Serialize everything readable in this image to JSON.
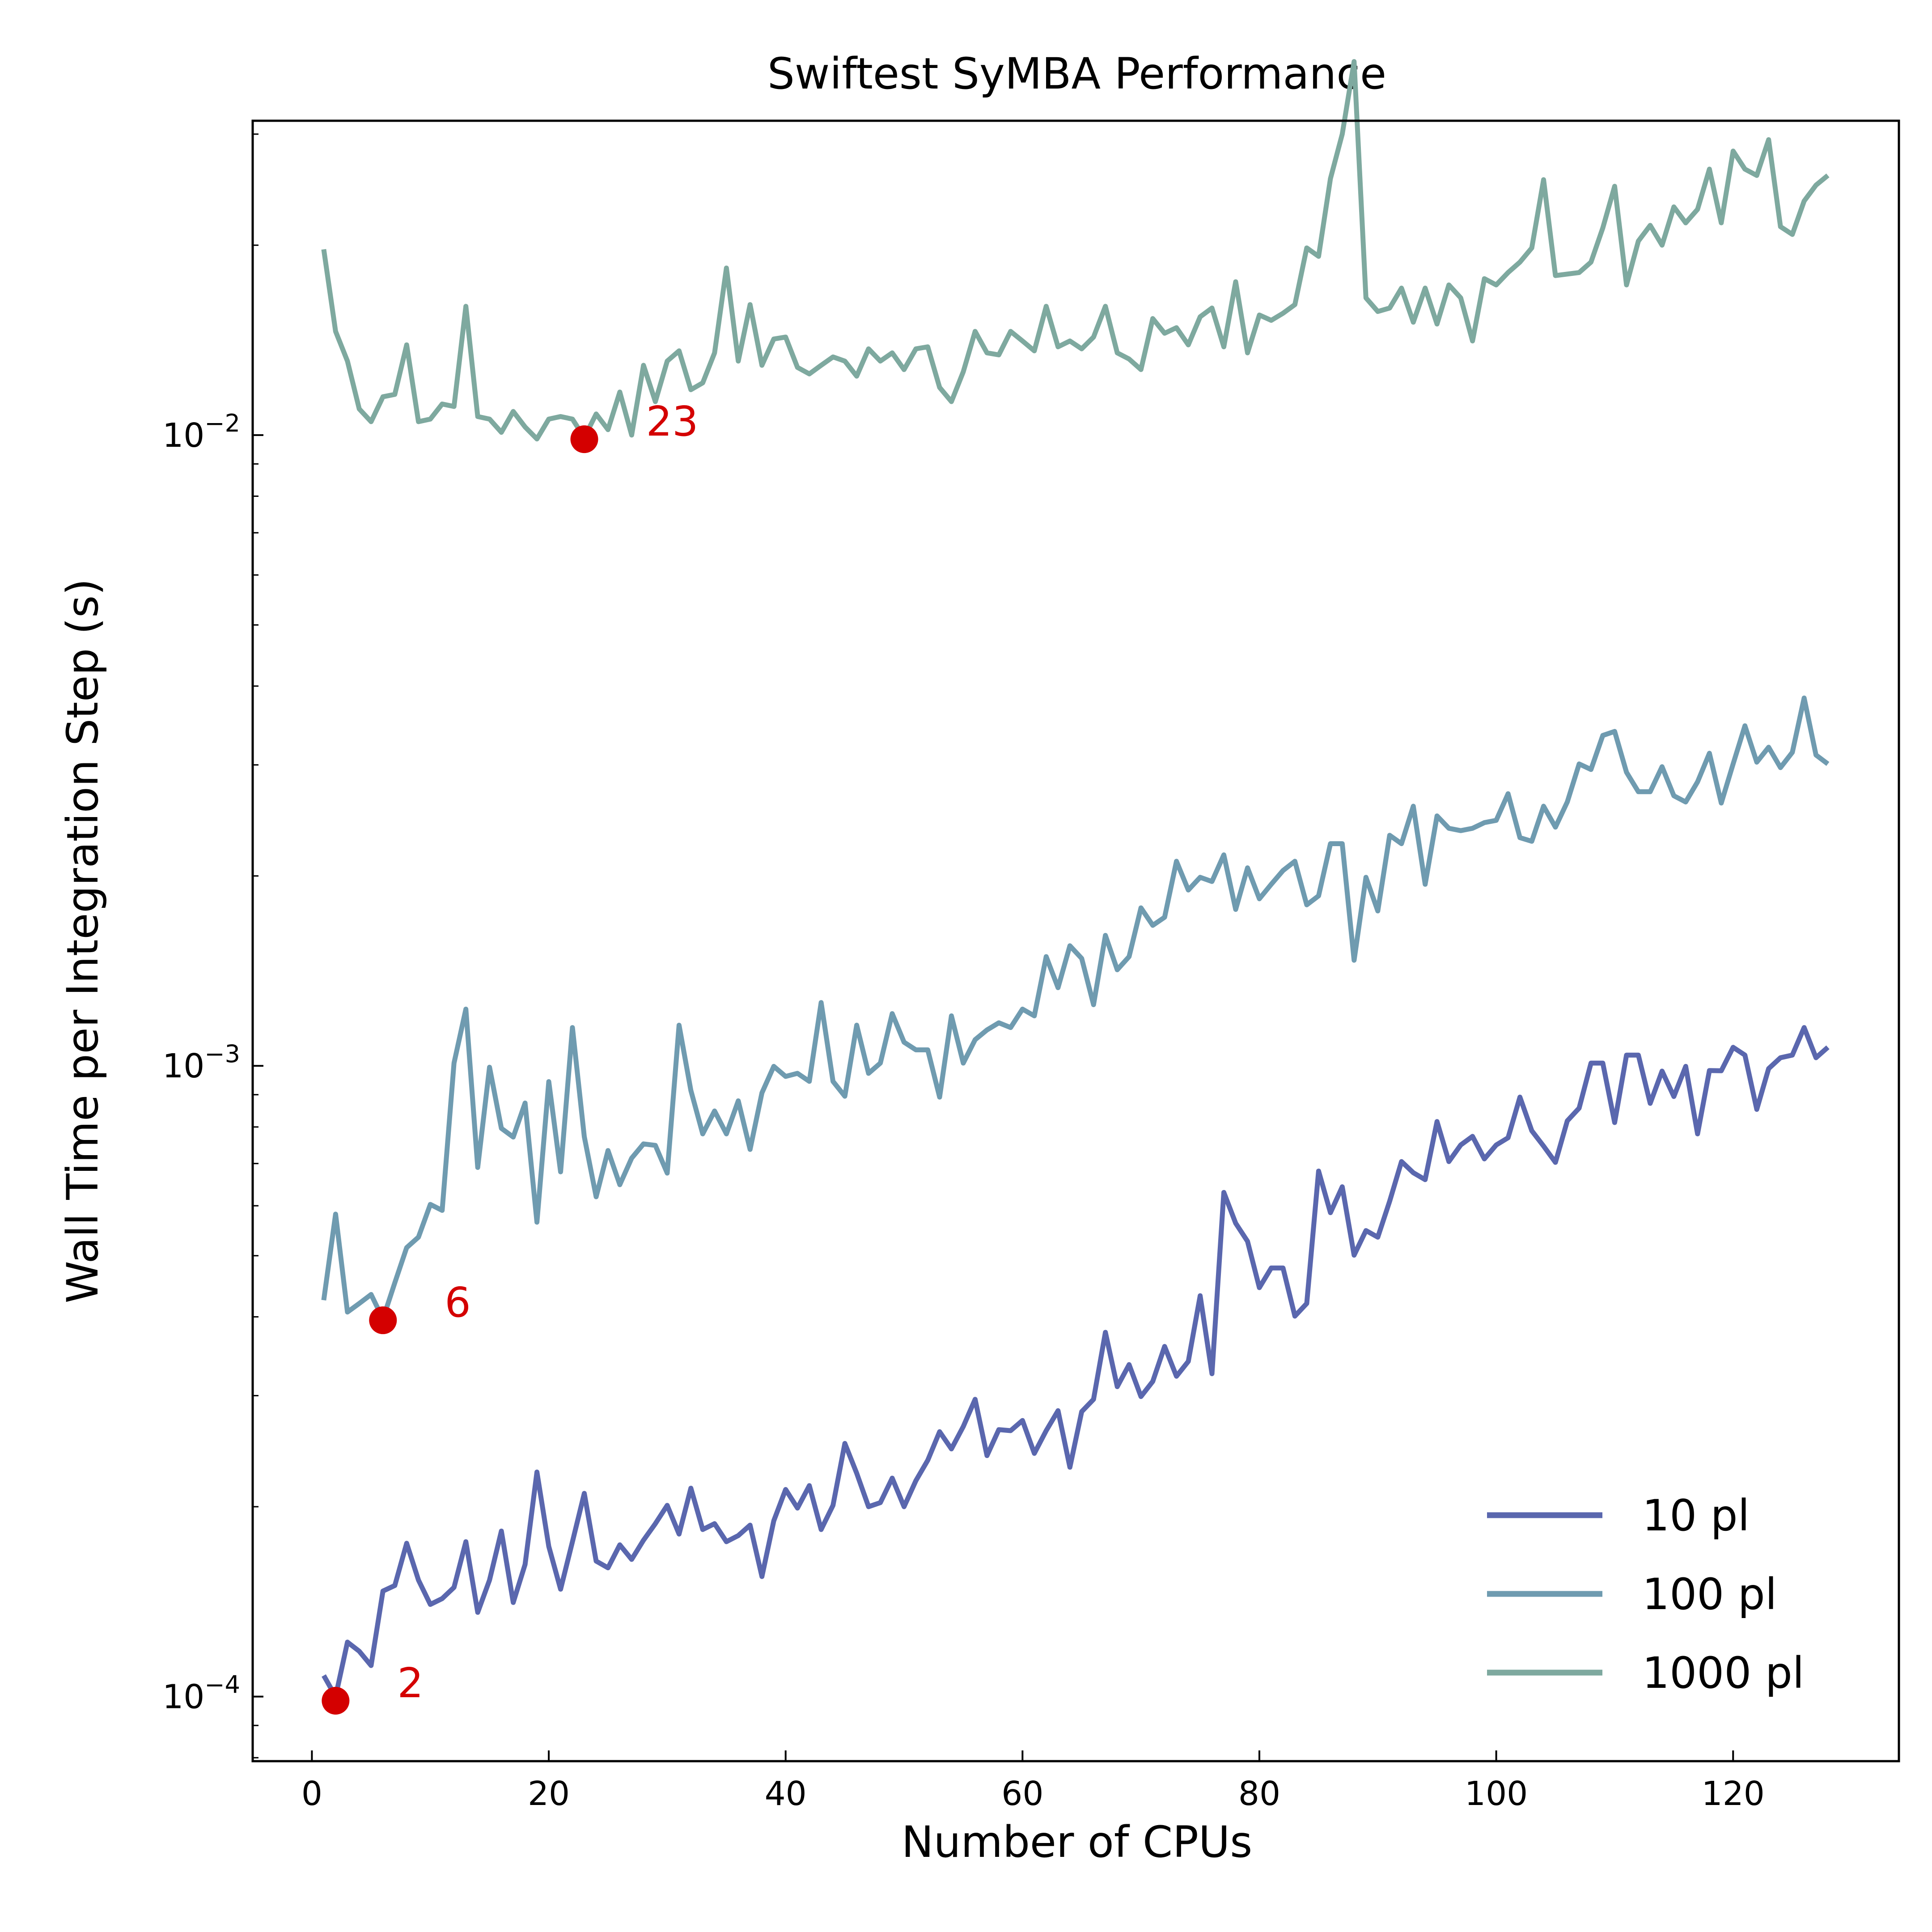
{
  "chart_data": {
    "type": "line",
    "title": "Swiftest SyMBA Performance",
    "xlabel": "Number of CPUs",
    "ylabel": "Wall Time per Integration Step (s)",
    "xlim": [
      -5,
      134
    ],
    "ylim": [
      7.9e-05,
      0.0315
    ],
    "yscale": "log",
    "grid": false,
    "legend_position": "lower-right",
    "x_ticks": [
      0,
      20,
      40,
      60,
      80,
      100,
      120
    ],
    "y_ticks": [
      0.0001,
      0.001,
      0.01
    ],
    "y_tick_labels": [
      {
        "base": "10",
        "exp": "−4"
      },
      {
        "base": "10",
        "exp": "−3"
      },
      {
        "base": "10",
        "exp": "−2"
      }
    ],
    "x": [
      1,
      2,
      3,
      4,
      5,
      6,
      7,
      8,
      9,
      10,
      11,
      12,
      13,
      14,
      15,
      16,
      17,
      18,
      19,
      20,
      21,
      22,
      23,
      24,
      25,
      26,
      27,
      28,
      29,
      30,
      31,
      32,
      33,
      34,
      35,
      36,
      37,
      38,
      39,
      40,
      41,
      42,
      43,
      44,
      45,
      46,
      47,
      48,
      49,
      50,
      51,
      52,
      53,
      54,
      55,
      56,
      57,
      58,
      59,
      60,
      61,
      62,
      63,
      64,
      65,
      66,
      67,
      68,
      69,
      70,
      71,
      72,
      73,
      74,
      75,
      76,
      77,
      78,
      79,
      80,
      81,
      82,
      83,
      84,
      85,
      86,
      87,
      88,
      89,
      90,
      91,
      92,
      93,
      94,
      95,
      96,
      97,
      98,
      99,
      100,
      101,
      102,
      103,
      104,
      105,
      106,
      107,
      108,
      109,
      110,
      111,
      112,
      113,
      114,
      115,
      116,
      117,
      118,
      119,
      120,
      121,
      122,
      123,
      124,
      125,
      126,
      127,
      128
    ],
    "series": [
      {
        "name": "10 pl",
        "color": "#5a67ae",
        "values": [
          0.000108,
          0.0001,
          0.000122,
          0.000118,
          0.000112,
          0.000147,
          0.00015,
          0.000175,
          0.000153,
          0.00014,
          0.000143,
          0.000149,
          0.000176,
          0.000136,
          0.000153,
          0.000183,
          0.000141,
          0.000162,
          0.000227,
          0.000173,
          0.000148,
          0.000176,
          0.00021,
          0.000164,
          0.00016,
          0.000174,
          0.000165,
          0.000177,
          0.000188,
          0.000201,
          0.000181,
          0.000214,
          0.000184,
          0.000188,
          0.000176,
          0.00018,
          0.000187,
          0.000155,
          0.00019,
          0.000213,
          0.000199,
          0.000216,
          0.000184,
          0.000201,
          0.000252,
          0.000226,
          0.0002,
          0.000203,
          0.000222,
          0.0002,
          0.00022,
          0.000237,
          0.000263,
          0.000247,
          0.000268,
          0.000296,
          0.000241,
          0.000265,
          0.000264,
          0.000274,
          0.000243,
          0.000264,
          0.000284,
          0.000231,
          0.000283,
          0.000296,
          0.000378,
          0.00031,
          0.000336,
          0.000299,
          0.000316,
          0.000359,
          0.000322,
          0.00034,
          0.000432,
          0.000325,
          0.00063,
          0.000563,
          0.000527,
          0.000445,
          0.000478,
          0.000478,
          0.000401,
          0.00042,
          0.000681,
          0.000585,
          0.000643,
          0.000501,
          0.000548,
          0.000535,
          0.00061,
          0.000705,
          0.000677,
          0.00066,
          0.000816,
          0.000705,
          0.000749,
          0.000773,
          0.000712,
          0.000749,
          0.000769,
          0.000892,
          0.000789,
          0.000746,
          0.000703,
          0.000818,
          0.000857,
          0.00101,
          0.00101,
          0.000813,
          0.00104,
          0.00104,
          0.000872,
          0.000981,
          0.000894,
          0.000998,
          0.00078,
          0.000983,
          0.000982,
          0.00107,
          0.00104,
          0.000853,
          0.00099,
          0.00103,
          0.00104,
          0.00115,
          0.00103,
          0.00107
        ]
      },
      {
        "name": "100 pl",
        "color": "#6f9bb0",
        "values": [
          0.000425,
          0.000582,
          0.000407,
          0.00042,
          0.000434,
          0.000397,
          0.000453,
          0.000515,
          0.000535,
          0.000603,
          0.00059,
          0.00101,
          0.00123,
          0.00069,
          0.000995,
          0.000796,
          0.000771,
          0.000873,
          0.000565,
          0.000944,
          0.000679,
          0.00115,
          0.000772,
          0.00062,
          0.000734,
          0.000648,
          0.000714,
          0.000752,
          0.000748,
          0.000676,
          0.00116,
          0.000914,
          0.00078,
          0.000848,
          0.00078,
          0.00088,
          0.000737,
          0.000906,
          0.000998,
          0.000962,
          0.000973,
          0.000945,
          0.00126,
          0.000945,
          0.000895,
          0.00116,
          0.000973,
          0.00101,
          0.00121,
          0.00109,
          0.00106,
          0.00106,
          0.000892,
          0.0012,
          0.00101,
          0.0011,
          0.00114,
          0.00117,
          0.00115,
          0.00123,
          0.0012,
          0.00149,
          0.00133,
          0.00155,
          0.00148,
          0.00125,
          0.00161,
          0.00142,
          0.00149,
          0.00178,
          0.00167,
          0.00172,
          0.00211,
          0.0019,
          0.00199,
          0.00196,
          0.00216,
          0.00177,
          0.00206,
          0.00184,
          0.00194,
          0.00204,
          0.00211,
          0.0018,
          0.00186,
          0.00225,
          0.00225,
          0.00147,
          0.00199,
          0.00176,
          0.00232,
          0.00225,
          0.00258,
          0.00194,
          0.00249,
          0.00238,
          0.00236,
          0.00238,
          0.00243,
          0.00245,
          0.0027,
          0.0023,
          0.00227,
          0.00258,
          0.00239,
          0.00262,
          0.00301,
          0.00295,
          0.00334,
          0.00339,
          0.00292,
          0.00272,
          0.00272,
          0.00298,
          0.00268,
          0.00262,
          0.00282,
          0.00313,
          0.00261,
          0.00301,
          0.00346,
          0.00303,
          0.0032,
          0.00297,
          0.00314,
          0.00383,
          0.00311,
          0.00301
        ]
      },
      {
        "name": "1000 pl",
        "color": "#7ea99f",
        "values": [
          0.0197,
          0.0146,
          0.0131,
          0.011,
          0.0105,
          0.0115,
          0.0116,
          0.0139,
          0.0105,
          0.0106,
          0.0112,
          0.0111,
          0.016,
          0.0107,
          0.0106,
          0.0101,
          0.0109,
          0.0103,
          0.00986,
          0.0106,
          0.0107,
          0.0106,
          0.00991,
          0.0108,
          0.0102,
          0.0117,
          0.01,
          0.0129,
          0.0113,
          0.0131,
          0.0136,
          0.0118,
          0.0121,
          0.0135,
          0.0184,
          0.0131,
          0.0161,
          0.0129,
          0.0142,
          0.0143,
          0.0128,
          0.0125,
          0.0129,
          0.0133,
          0.0131,
          0.0124,
          0.0137,
          0.0131,
          0.0135,
          0.0127,
          0.0137,
          0.0138,
          0.0119,
          0.0113,
          0.0126,
          0.0146,
          0.0135,
          0.0134,
          0.0146,
          0.0141,
          0.0136,
          0.016,
          0.0138,
          0.0141,
          0.0137,
          0.0143,
          0.016,
          0.0135,
          0.0132,
          0.0127,
          0.0153,
          0.0145,
          0.0148,
          0.0139,
          0.0154,
          0.0159,
          0.0138,
          0.0175,
          0.0135,
          0.0155,
          0.0152,
          0.0156,
          0.0161,
          0.0198,
          0.0192,
          0.0255,
          0.03,
          0.0391,
          0.0165,
          0.0157,
          0.0159,
          0.0171,
          0.0151,
          0.0171,
          0.015,
          0.0173,
          0.0165,
          0.0141,
          0.0177,
          0.0173,
          0.0181,
          0.0188,
          0.0198,
          0.0254,
          0.0179,
          0.018,
          0.0181,
          0.0188,
          0.0213,
          0.0248,
          0.0173,
          0.0203,
          0.0215,
          0.02,
          0.023,
          0.0217,
          0.0228,
          0.0264,
          0.0217,
          0.0282,
          0.0264,
          0.0258,
          0.0294,
          0.0214,
          0.0208,
          0.0235,
          0.0249,
          0.0258
        ]
      }
    ],
    "highlights": [
      {
        "series": "10 pl",
        "x": 2,
        "y": 9.85e-05,
        "label": "2"
      },
      {
        "series": "100 pl",
        "x": 6,
        "y": 0.000395,
        "label": "6"
      },
      {
        "series": "1000 pl",
        "x": 23,
        "y": 0.00985,
        "label": "23"
      }
    ],
    "highlight_color": "#d40000"
  }
}
